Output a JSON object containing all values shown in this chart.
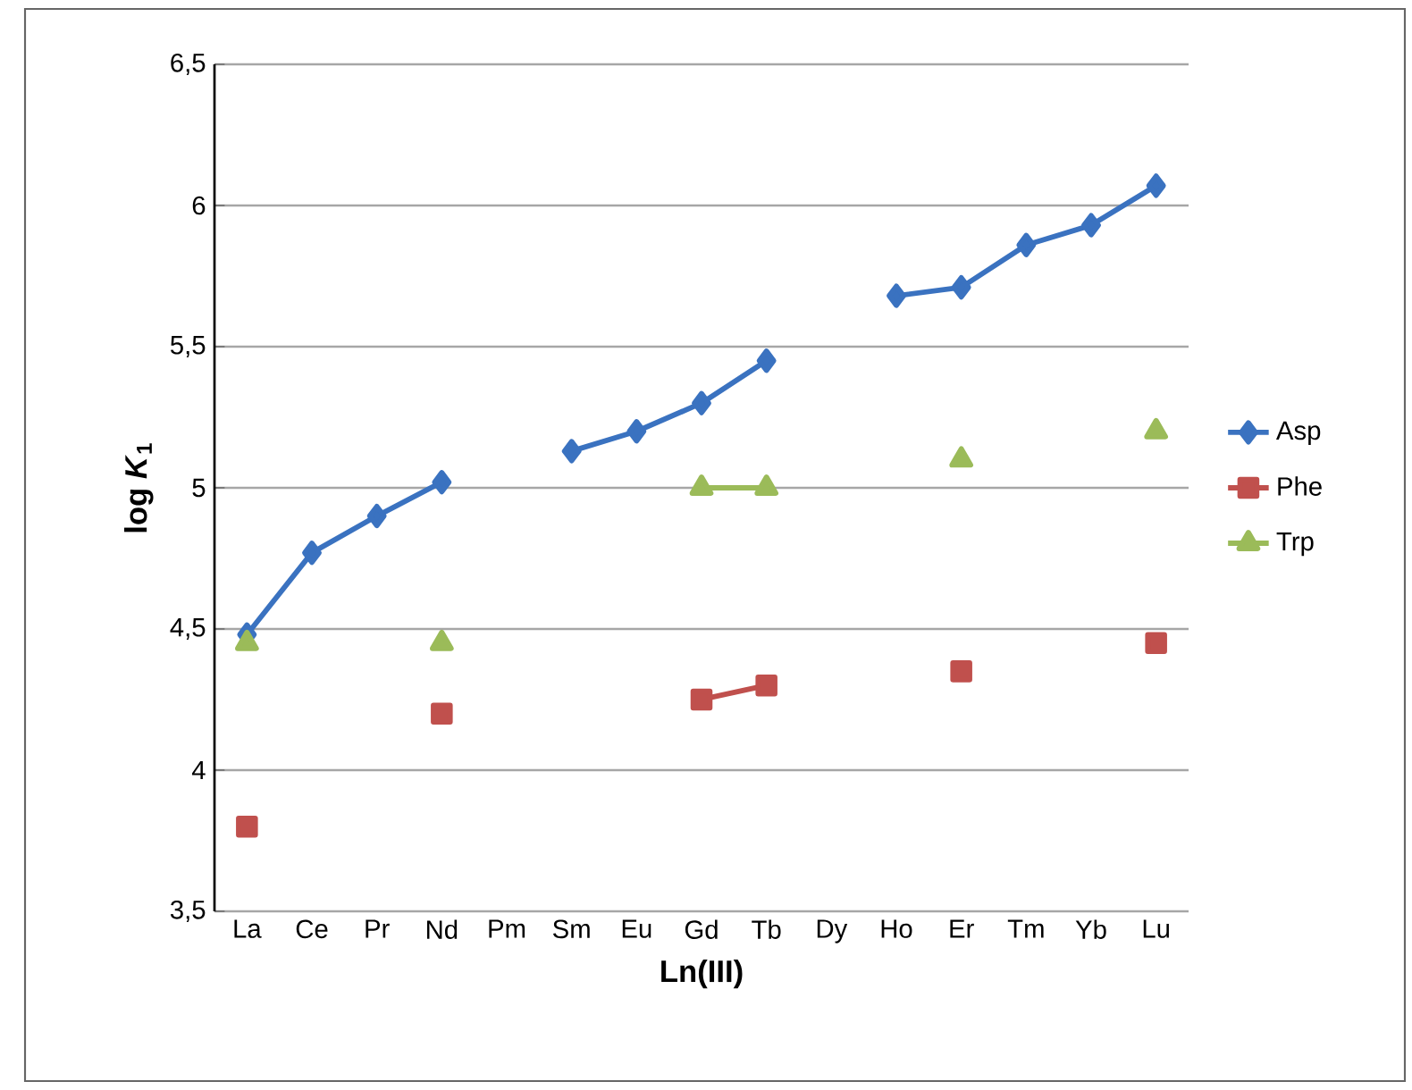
{
  "chart_data": {
    "type": "line",
    "xlabel": "Ln(III)",
    "ylabel": "log *K*$_{1}$",
    "categories": [
      "La",
      "Ce",
      "Pr",
      "Nd",
      "Pm",
      "Sm",
      "Eu",
      "Gd",
      "Tb",
      "Dy",
      "Ho",
      "Er",
      "Tm",
      "Yb",
      "Lu"
    ],
    "series": [
      {
        "name": "Asp",
        "color": "#3a72c0",
        "marker": "diamond",
        "values": [
          4.48,
          4.77,
          4.9,
          5.02,
          null,
          5.13,
          5.2,
          5.3,
          5.45,
          null,
          5.68,
          5.71,
          5.86,
          5.93,
          6.07
        ]
      },
      {
        "name": "Phe",
        "color": "#c0504d",
        "marker": "square",
        "values": [
          3.8,
          null,
          null,
          4.2,
          null,
          null,
          null,
          4.25,
          4.3,
          null,
          null,
          4.35,
          null,
          null,
          4.45
        ]
      },
      {
        "name": "Trp",
        "color": "#9bbb59",
        "marker": "triangle",
        "values": [
          4.45,
          null,
          null,
          4.45,
          null,
          null,
          null,
          5.0,
          5.0,
          null,
          null,
          5.1,
          null,
          null,
          5.2
        ]
      }
    ],
    "ylim": [
      3.5,
      6.5
    ],
    "yticks": [
      {
        "value": 3.5,
        "label": "3,5"
      },
      4,
      {
        "value": 4.5,
        "label": "4,5"
      },
      5,
      {
        "value": 5.5,
        "label": "5,5"
      },
      6,
      {
        "value": 6.5,
        "label": "6,5"
      }
    ],
    "grid": "y",
    "legend": "right",
    "line_style": "solid"
  }
}
